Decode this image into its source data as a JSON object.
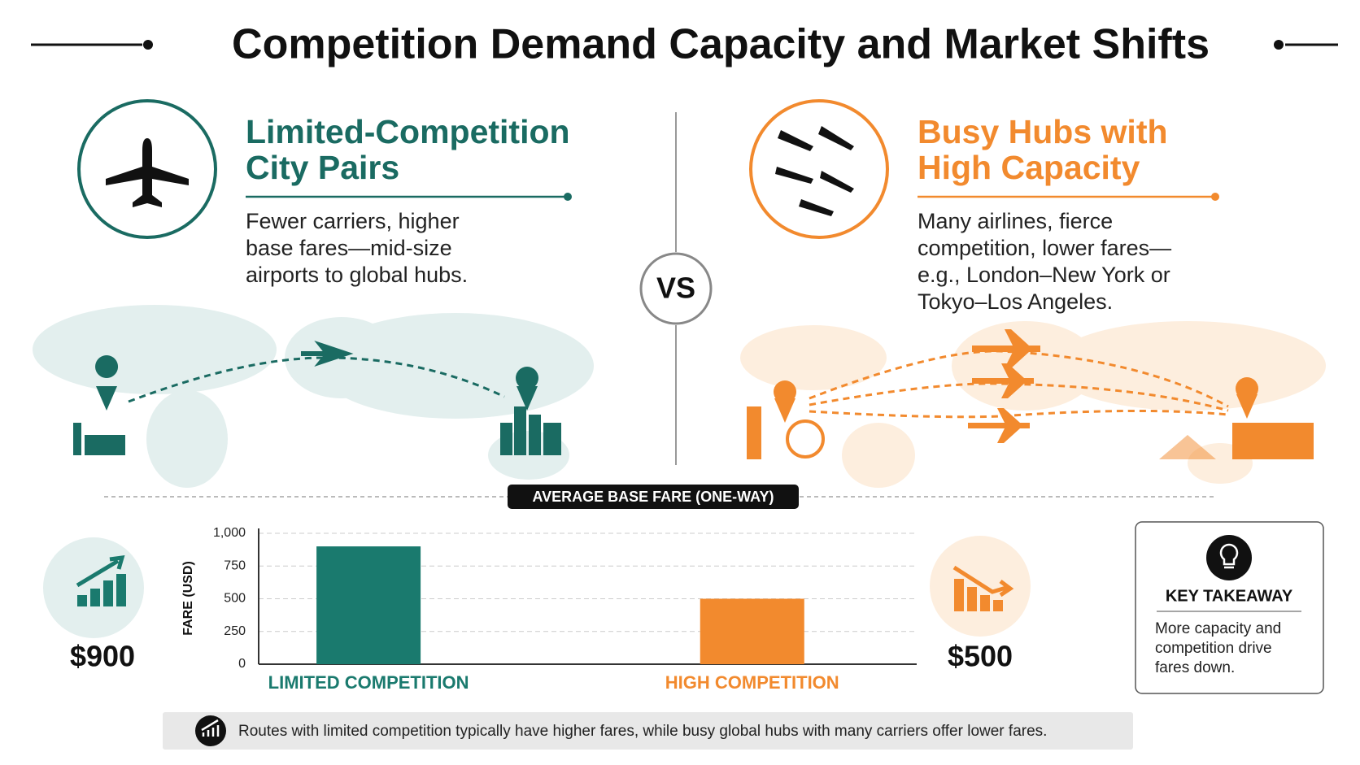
{
  "title": "Competition Demand Capacity and Market Shifts",
  "left": {
    "heading": "Limited-Competition City Pairs",
    "description": "Fewer carriers, higher base fares—mid-size airports to global hubs."
  },
  "vs": "VS",
  "right": {
    "heading": "Busy Hubs with High Capacity",
    "description": "Many airlines, fierce competition, lower fares—e.g., London–New York or Tokyo–Los Angeles."
  },
  "chart_data": {
    "type": "bar",
    "title": "AVERAGE BASE FARE (ONE-WAY)",
    "y_label": "FARE (USD)",
    "categories": [
      "LIMITED COMPETITION",
      "HIGH COMPETITION"
    ],
    "values": [
      900,
      500
    ],
    "value_labels": [
      "$900",
      "$500"
    ],
    "colors": [
      "#1a7a6e",
      "#f28a2e"
    ],
    "ylim": [
      0,
      1000
    ],
    "yticks": [
      0,
      250,
      500,
      750,
      {
        "value": 1000,
        "label": "1,000"
      }
    ],
    "grid": true
  },
  "takeaway": {
    "title": "KEY TAKEAWAY",
    "text": "More capacity and competition drive fares down."
  },
  "footer": "Routes with limited competition typically have higher fares, while busy global hubs with many carriers offer lower fares."
}
